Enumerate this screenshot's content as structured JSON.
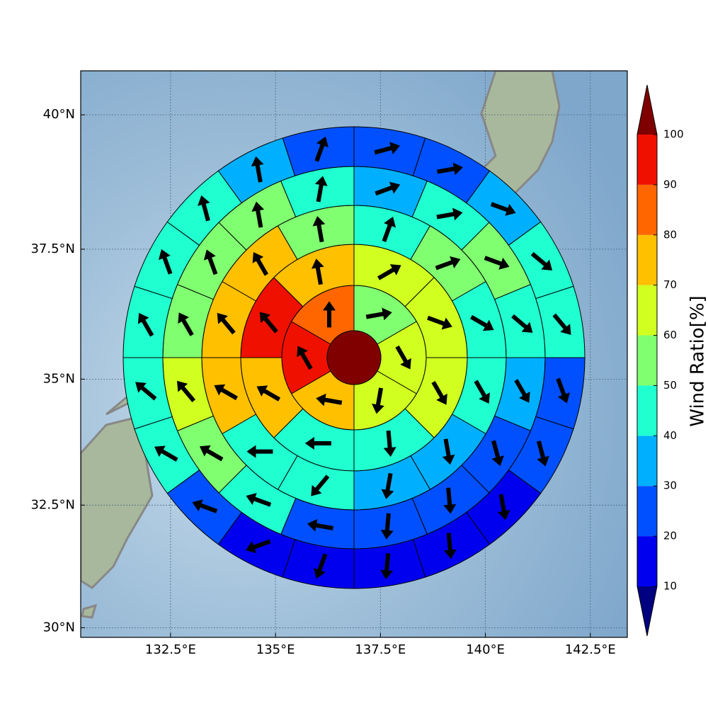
{
  "chart_data": {
    "type": "polar-sector-map",
    "projection": "mercator",
    "xlim": [
      130.36,
      143.38
    ],
    "ylim": [
      29.8,
      40.8
    ],
    "xticks": [
      {
        "value": 132.5,
        "label": "132.5°E"
      },
      {
        "value": 135,
        "label": "135°E"
      },
      {
        "value": 137.5,
        "label": "137.5°E"
      },
      {
        "value": 140,
        "label": "140°E"
      },
      {
        "value": 142.5,
        "label": "142.5°E"
      }
    ],
    "yticks": [
      {
        "value": 30,
        "label": "30°N"
      },
      {
        "value": 32.5,
        "label": "32.5°N"
      },
      {
        "value": 35,
        "label": "35°N"
      },
      {
        "value": 37.5,
        "label": "37.5°N"
      },
      {
        "value": 40,
        "label": "40°N"
      }
    ],
    "grid": true,
    "center_color": "#800000",
    "rings": [
      {
        "values": [
          55,
          65,
          62,
          75,
          95,
          85
        ],
        "directions": [
          80,
          150,
          190,
          280,
          330,
          0
        ]
      },
      {
        "values": [
          65,
          62,
          62,
          45,
          45,
          75,
          95,
          75
        ],
        "directions": [
          60,
          110,
          150,
          175,
          270,
          300,
          320,
          350
        ]
      },
      {
        "values": [
          45,
          55,
          45,
          45,
          35,
          35,
          45,
          45,
          75,
          75,
          75,
          55
        ],
        "directions": [
          20,
          70,
          120,
          150,
          170,
          190,
          220,
          270,
          300,
          320,
          330,
          350
        ]
      },
      {
        "values": [
          35,
          45,
          55,
          45,
          35,
          25,
          25,
          25,
          25,
          45,
          55,
          65,
          55,
          55,
          55,
          45
        ],
        "directions": [
          70,
          80,
          110,
          130,
          150,
          165,
          175,
          185,
          280,
          290,
          300,
          320,
          330,
          340,
          350,
          10
        ]
      },
      {
        "values": [
          25,
          25,
          35,
          45,
          45,
          25,
          20,
          15,
          15,
          15,
          15,
          15,
          25,
          45,
          45,
          45,
          45,
          45,
          35,
          25
        ],
        "directions": [
          75,
          80,
          110,
          130,
          140,
          160,
          165,
          170,
          175,
          185,
          200,
          250,
          290,
          300,
          310,
          330,
          340,
          345,
          350,
          20
        ]
      }
    ],
    "colorbar": {
      "label": "Wind Ratio[%]",
      "ticks": [
        10,
        20,
        30,
        40,
        50,
        60,
        70,
        80,
        90,
        100
      ],
      "colors": [
        "#0000ee",
        "#0050ff",
        "#00b0ff",
        "#20ffd0",
        "#80ff70",
        "#d0ff20",
        "#ffc000",
        "#ff6600",
        "#f01000"
      ],
      "under_color": "#000080",
      "over_color": "#800000"
    }
  }
}
